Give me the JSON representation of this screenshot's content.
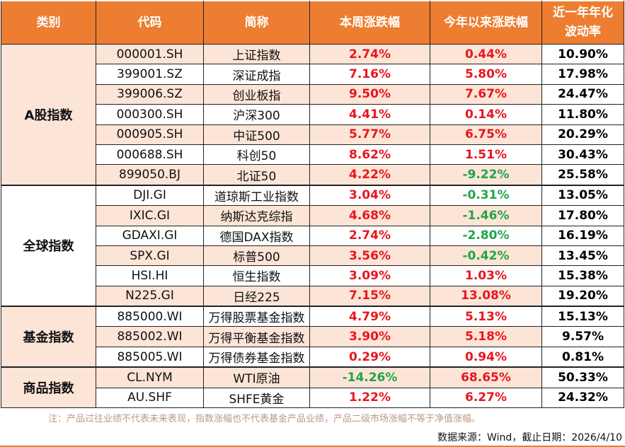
{
  "colors": {
    "header": "#ED7D31",
    "stripe": "#FCE4D6",
    "up": "#E8161E",
    "down": "#1FA548"
  },
  "headers": [
    "类别",
    "代码",
    "简称",
    "本周涨跌幅",
    "今年以来涨跌幅",
    "近一年年化波动率"
  ],
  "groups": [
    {
      "category": "A股指数",
      "rows": [
        [
          "000001.SH",
          "上证指数",
          "2.74%",
          "0.44%",
          "10.90%"
        ],
        [
          "399001.SZ",
          "深证成指",
          "7.16%",
          "5.80%",
          "17.98%"
        ],
        [
          "399006.SZ",
          "创业板指",
          "9.50%",
          "7.67%",
          "24.47%"
        ],
        [
          "000300.SH",
          "沪深300",
          "4.41%",
          "0.14%",
          "11.80%"
        ],
        [
          "000905.SH",
          "中证500",
          "5.77%",
          "6.75%",
          "20.29%"
        ],
        [
          "000688.SH",
          "科创50",
          "8.62%",
          "1.51%",
          "30.43%"
        ],
        [
          "899050.BJ",
          "北证50",
          "4.22%",
          "-9.22%",
          "25.58%"
        ]
      ]
    },
    {
      "category": "全球指数",
      "rows": [
        [
          "DJI.GI",
          "道琼斯工业指数",
          "3.04%",
          "-0.31%",
          "13.05%"
        ],
        [
          "IXIC.GI",
          "纳斯达克综指",
          "4.68%",
          "-1.46%",
          "17.80%"
        ],
        [
          "GDAXI.GI",
          "德国DAX指数",
          "2.74%",
          "-2.80%",
          "16.19%"
        ],
        [
          "SPX.GI",
          "标普500",
          "3.56%",
          "-0.42%",
          "13.45%"
        ],
        [
          "HSI.HI",
          "恒生指数",
          "3.09%",
          "1.03%",
          "15.38%"
        ],
        [
          "N225.GI",
          "日经225",
          "7.15%",
          "13.08%",
          "19.20%"
        ]
      ]
    },
    {
      "category": "基金指数",
      "rows": [
        [
          "885000.WI",
          "万得股票基金指数",
          "4.79%",
          "5.13%",
          "15.13%"
        ],
        [
          "885002.WI",
          "万得平衡基金指数",
          "3.90%",
          "5.18%",
          "9.57%"
        ],
        [
          "885005.WI",
          "万得债券基金指数",
          "0.29%",
          "0.94%",
          "0.81%"
        ]
      ]
    },
    {
      "category": "商品指数",
      "rows": [
        [
          "CL.NYM",
          "WTI原油",
          "-14.26%",
          "68.65%",
          "50.33%"
        ],
        [
          "AU.SHF",
          "SHFE黄金",
          "1.22%",
          "6.27%",
          "24.32%"
        ]
      ]
    }
  ],
  "footer": {
    "note": "注：产品过往业绩不代表未来表现，指数涨幅也不代表基金产品业绩，产品二级市场涨幅不等于净值涨幅。",
    "source": "数据来源：Wind，截止日期：2026/4/10"
  }
}
